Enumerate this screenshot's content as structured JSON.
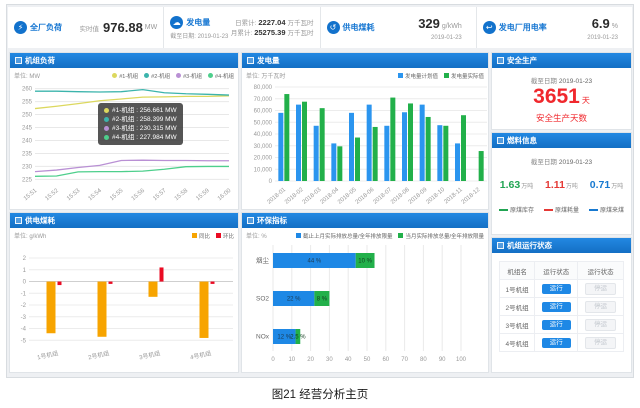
{
  "header": {
    "cards": [
      {
        "title": "全厂负荷",
        "label": "实时值",
        "value": "976.88",
        "unit": "MW"
      },
      {
        "title": "发电量",
        "date_label": "截至日期: 2019-01-23",
        "rows": [
          {
            "label": "日累计:",
            "value": "2227.04",
            "unit": "万千瓦时"
          },
          {
            "label": "月累计:",
            "value": "25275.39",
            "unit": "万千瓦时"
          }
        ]
      },
      {
        "title": "供电煤耗",
        "value": "329",
        "unit": "g/kWh",
        "date": "2019-01-23"
      },
      {
        "title": "发电厂用电率",
        "value": "6.9",
        "unit": "%",
        "date": "2019-01-23"
      }
    ]
  },
  "panels": {
    "unit_load": {
      "title": "机组负荷",
      "unit_label": "单位: MW"
    },
    "generation": {
      "title": "发电量",
      "unit_label": "单位: 万千瓦时"
    },
    "safety": {
      "title": "安全生产",
      "date_label": "截至日期",
      "date": "2019-01-23",
      "days": "3651",
      "days_unit": "天",
      "caption": "安全生产天数"
    },
    "fuel": {
      "title": "燃料信息",
      "date_label": "截至日期",
      "date": "2019-01-23",
      "items": [
        {
          "value": "1.63",
          "unit": "万吨",
          "label": "原煤库存",
          "color": "#21a453"
        },
        {
          "value": "1.11",
          "unit": "万吨",
          "label": "原煤耗量",
          "color": "#e53935"
        },
        {
          "value": "0.71",
          "unit": "万吨",
          "label": "原煤来煤",
          "color": "#1779d0"
        }
      ]
    },
    "coal": {
      "title": "供电煤耗",
      "unit_label": "单位: g/kWh"
    },
    "env": {
      "title": "环保指标",
      "unit_label": "单位: %"
    },
    "status": {
      "title": "机组运行状态",
      "columns": [
        "机组名",
        "运行状态",
        "运行状态"
      ],
      "rows": [
        {
          "unit": "1号机组",
          "run": "运行",
          "stop": "停运"
        },
        {
          "unit": "2号机组",
          "run": "运行",
          "stop": "停运"
        },
        {
          "unit": "3号机组",
          "run": "运行",
          "stop": "停运"
        },
        {
          "unit": "4号机组",
          "run": "运行",
          "stop": "停运"
        }
      ]
    }
  },
  "chart_data": [
    {
      "id": "unit_load",
      "type": "line",
      "title": "机组负荷",
      "ylabel": "MW",
      "ylim": [
        225,
        260
      ],
      "yticks": [
        225,
        230,
        235,
        240,
        245,
        250,
        255,
        260
      ],
      "x": [
        "15:51",
        "15:52",
        "15:53",
        "15:54",
        "15:55",
        "15:56",
        "15:57",
        "15:58",
        "15:59",
        "16:00"
      ],
      "series": [
        {
          "name": "#1-机组",
          "color": "#dcd85e",
          "values": [
            252.3,
            253.2,
            254.2,
            255.3,
            256.0,
            256.7,
            256.8,
            257.0,
            257.0,
            257.2
          ]
        },
        {
          "name": "#2-机组",
          "color": "#3cb4ac",
          "values": [
            259.0,
            259.0,
            258.8,
            258.7,
            258.8,
            259.6,
            258.4,
            258.0,
            257.8,
            257.5
          ]
        },
        {
          "name": "#3-机组",
          "color": "#b990d4",
          "values": [
            228.0,
            228.6,
            229.6,
            230.4,
            232.3,
            232.4,
            232.3,
            232.3,
            232.2,
            232.2
          ]
        },
        {
          "name": "#4-机组",
          "color": "#4ecf8c",
          "values": [
            226.2,
            226.3,
            227.9,
            228.0,
            228.0,
            228.2,
            228.9,
            229.9,
            230.0,
            230.0
          ]
        }
      ],
      "tooltip": [
        {
          "name": "#1-机组",
          "value": "256.661 MW"
        },
        {
          "name": "#2-机组",
          "value": "258.399 MW"
        },
        {
          "name": "#3-机组",
          "value": "230.315 MW"
        },
        {
          "name": "#4-机组",
          "value": "227.984 MW"
        }
      ]
    },
    {
      "id": "generation",
      "type": "bar",
      "title": "发电量",
      "ylabel": "万千瓦时",
      "ylim": [
        0,
        80000
      ],
      "ytick_step": 10000,
      "categories": [
        "2018-01",
        "2018-02",
        "2018-03",
        "2018-04",
        "2018-05",
        "2018-06",
        "2018-07",
        "2018-08",
        "2018-09",
        "2018-10",
        "2018-11",
        "2018-12"
      ],
      "series": [
        {
          "name": "发电量计划值",
          "color": "#2b95ef",
          "values": [
            58000,
            65000,
            47000,
            32000,
            58000,
            65000,
            47000,
            58500,
            65000,
            47500,
            32000,
            null
          ]
        },
        {
          "name": "发电量实际值",
          "color": "#22b04a",
          "values": [
            74000,
            67500,
            62000,
            29500,
            37000,
            46000,
            71000,
            66000,
            54500,
            47000,
            56000,
            25500
          ]
        }
      ]
    },
    {
      "id": "coal",
      "type": "bar-diverging",
      "title": "供电煤耗",
      "ylabel": "g/kWh",
      "yticks": [
        2,
        1,
        0,
        -1,
        -2,
        -3,
        -4,
        -5
      ],
      "categories": [
        "1号机组",
        "2号机组",
        "3号机组",
        "4号机组"
      ],
      "series": [
        {
          "name": "同比",
          "color": "#f7a400",
          "values": [
            -4.4,
            -4.7,
            -1.3,
            -4.8
          ]
        },
        {
          "name": "环比",
          "color": "#ea0b23",
          "values": [
            -0.3,
            -0.2,
            1.2,
            -0.2
          ]
        }
      ]
    },
    {
      "id": "env",
      "type": "stacked-hbar",
      "title": "环保指标",
      "xlabel": "%",
      "xticks": [
        0,
        10,
        20,
        30,
        40,
        50,
        60,
        70,
        80,
        90,
        100
      ],
      "categories": [
        "烟尘",
        "SO2",
        "NOx"
      ],
      "series": [
        {
          "name": "截止上月实际排放总量/全年排放限量",
          "color": "#1e88e5",
          "values": [
            44,
            22,
            12
          ]
        },
        {
          "name": "当月实际排放总量/全年排放限量",
          "color": "#22b04a",
          "values": [
            10,
            8,
            2.5
          ]
        }
      ],
      "labels": [
        [
          "44 %",
          "10 %"
        ],
        [
          "22 %",
          "8 %"
        ],
        [
          "12 %",
          "2.5 %"
        ]
      ]
    }
  ],
  "caption": "图21 经营分析主页"
}
